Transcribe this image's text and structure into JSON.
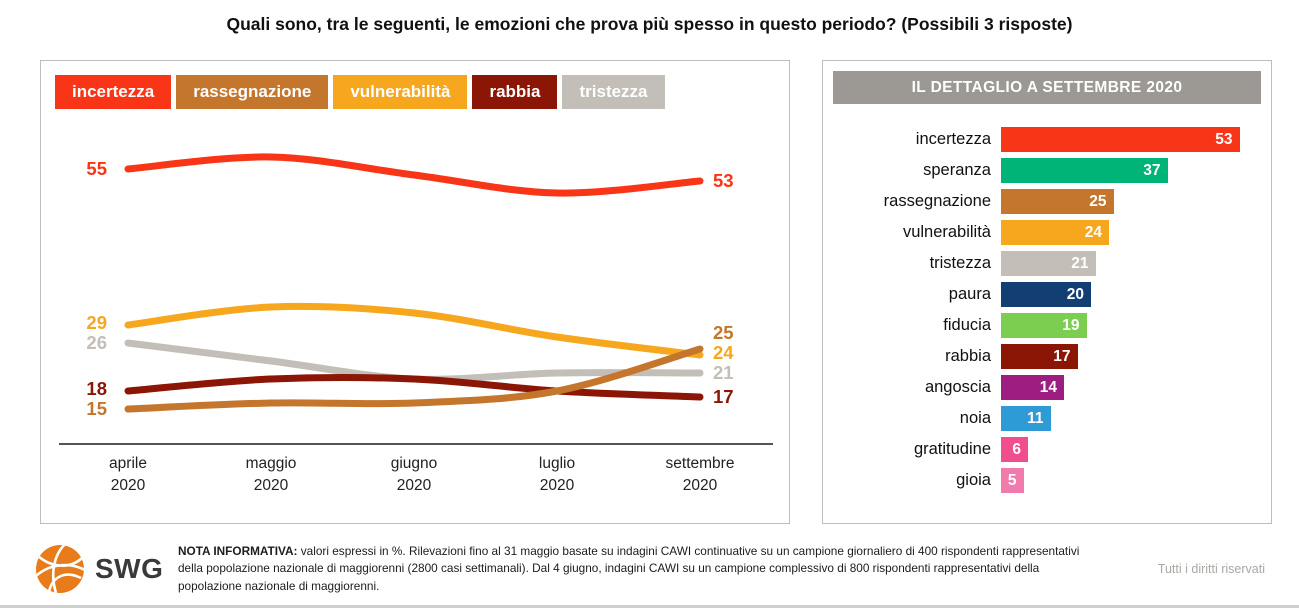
{
  "title": "Quali sono, tra le seguenti, le emozioni che prova più spesso in questo periodo? (Possibili 3 risposte)",
  "legend": [
    {
      "label": "incertezza",
      "color": "#F93517"
    },
    {
      "label": "rassegnazione",
      "color": "#C4762C"
    },
    {
      "label": "vulnerabilità",
      "color": "#F6A71E"
    },
    {
      "label": "rabbia",
      "color": "#8B1606"
    },
    {
      "label": "tristezza",
      "color": "#C3BEB7"
    }
  ],
  "chart_data": [
    {
      "type": "line",
      "categories": [
        "aprile",
        "maggio",
        "giugno",
        "luglio",
        "settembre"
      ],
      "year_label": "2020",
      "ylim": [
        9,
        62
      ],
      "grid": false,
      "legend_position": "top",
      "series": [
        {
          "name": "tristezza",
          "color": "#C3BEB7",
          "values": [
            26,
            23,
            20,
            21,
            21
          ],
          "start_label": "26",
          "end_label": "21"
        },
        {
          "name": "rabbia",
          "color": "#8B1606",
          "values": [
            18,
            20,
            20,
            18,
            17
          ],
          "start_label": "18",
          "end_label": "17"
        },
        {
          "name": "vulnerabilità",
          "color": "#F6A71E",
          "values": [
            29,
            32,
            31,
            27,
            24
          ],
          "start_label": "29",
          "end_label": "24"
        },
        {
          "name": "rassegnazione",
          "color": "#C4762C",
          "values": [
            15,
            16,
            16,
            18,
            25
          ],
          "start_label": "15",
          "end_label": "25"
        },
        {
          "name": "incertezza",
          "color": "#F93517",
          "values": [
            55,
            57,
            54,
            51,
            53
          ],
          "start_label": "55",
          "end_label": "53"
        }
      ]
    },
    {
      "type": "bar",
      "orientation": "horizontal",
      "title": "IL DETTAGLIO A SETTEMBRE 2020",
      "categories": [
        "incertezza",
        "speranza",
        "rassegnazione",
        "vulnerabilità",
        "tristezza",
        "paura",
        "fiducia",
        "rabbia",
        "angoscia",
        "noia",
        "gratitudine",
        "gioia"
      ],
      "values": [
        53,
        37,
        25,
        24,
        21,
        20,
        19,
        17,
        14,
        11,
        6,
        5
      ],
      "colors": [
        "#F93517",
        "#00B377",
        "#C4762C",
        "#F6A71E",
        "#C3BEB7",
        "#123E73",
        "#7BCE4F",
        "#8B1606",
        "#9D1D80",
        "#2E9BD6",
        "#EF4F8F",
        "#F27BAE"
      ],
      "xlim": [
        0,
        55
      ]
    }
  ],
  "footer": {
    "logo": "SWG",
    "note_bold": "NOTA INFORMATIVA:",
    "note_text": "valori espressi in %. Rilevazioni fino al 31 maggio basate su indagini CAWI continuative su un campione giornaliero di 400 rispondenti rappresentativi della popolazione nazionale di maggiorenni (2800 casi settimanali). Dal 4 giugno, indagini CAWI su un campione complessivo di 800 rispondenti rappresentativi della popolazione nazionale di maggiorenni.",
    "rights": "Tutti i diritti riservati"
  }
}
